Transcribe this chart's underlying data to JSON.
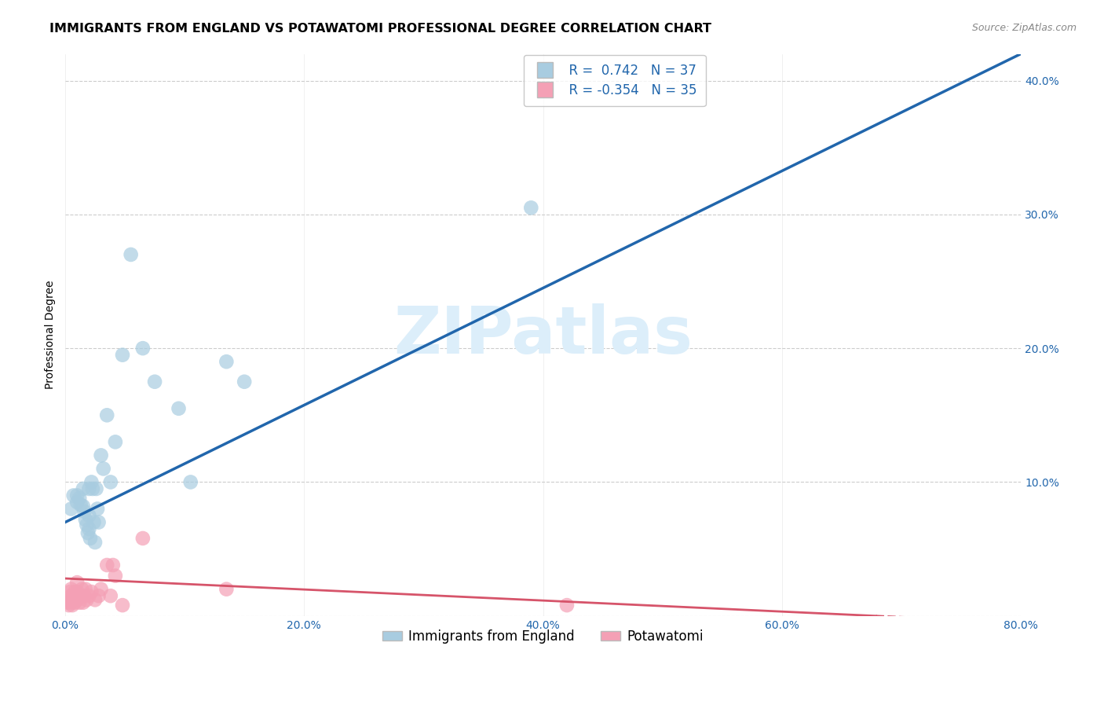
{
  "title": "IMMIGRANTS FROM ENGLAND VS POTAWATOMI PROFESSIONAL DEGREE CORRELATION CHART",
  "source": "Source: ZipAtlas.com",
  "ylabel": "Professional Degree",
  "xlim": [
    0.0,
    0.8
  ],
  "ylim": [
    0.0,
    0.42
  ],
  "xtick_vals": [
    0.0,
    0.2,
    0.4,
    0.6,
    0.8
  ],
  "xtick_labels": [
    "0.0%",
    "20.0%",
    "40.0%",
    "60.0%",
    "80.0%"
  ],
  "ytick_vals": [
    0.0,
    0.1,
    0.2,
    0.3,
    0.4
  ],
  "ytick_labels_right": [
    "",
    "10.0%",
    "20.0%",
    "30.0%",
    "40.0%"
  ],
  "blue_scatter_x": [
    0.005,
    0.007,
    0.01,
    0.01,
    0.012,
    0.013,
    0.015,
    0.015,
    0.016,
    0.017,
    0.018,
    0.019,
    0.02,
    0.02,
    0.02,
    0.021,
    0.022,
    0.023,
    0.024,
    0.025,
    0.026,
    0.027,
    0.028,
    0.03,
    0.032,
    0.035,
    0.038,
    0.042,
    0.048,
    0.055,
    0.065,
    0.075,
    0.095,
    0.105,
    0.135,
    0.15,
    0.39
  ],
  "blue_scatter_y": [
    0.08,
    0.09,
    0.085,
    0.09,
    0.088,
    0.083,
    0.095,
    0.082,
    0.078,
    0.072,
    0.068,
    0.062,
    0.095,
    0.075,
    0.065,
    0.058,
    0.1,
    0.095,
    0.07,
    0.055,
    0.095,
    0.08,
    0.07,
    0.12,
    0.11,
    0.15,
    0.1,
    0.13,
    0.195,
    0.27,
    0.2,
    0.175,
    0.155,
    0.1,
    0.19,
    0.175,
    0.305
  ],
  "pink_scatter_x": [
    0.002,
    0.003,
    0.004,
    0.004,
    0.005,
    0.005,
    0.005,
    0.006,
    0.007,
    0.008,
    0.008,
    0.009,
    0.01,
    0.01,
    0.01,
    0.012,
    0.013,
    0.014,
    0.015,
    0.016,
    0.017,
    0.018,
    0.02,
    0.022,
    0.025,
    0.028,
    0.03,
    0.035,
    0.038,
    0.04,
    0.042,
    0.048,
    0.065,
    0.135,
    0.42
  ],
  "pink_scatter_y": [
    0.01,
    0.008,
    0.012,
    0.018,
    0.01,
    0.015,
    0.02,
    0.008,
    0.012,
    0.01,
    0.018,
    0.015,
    0.012,
    0.018,
    0.025,
    0.01,
    0.015,
    0.02,
    0.01,
    0.015,
    0.02,
    0.012,
    0.015,
    0.018,
    0.012,
    0.015,
    0.02,
    0.038,
    0.015,
    0.038,
    0.03,
    0.008,
    0.058,
    0.02,
    0.008
  ],
  "blue_line_x0": 0.0,
  "blue_line_y0": 0.07,
  "blue_line_x1": 0.8,
  "blue_line_y1": 0.42,
  "pink_line_x0": 0.0,
  "pink_line_y0": 0.028,
  "pink_line_x1": 0.8,
  "pink_line_y1": -0.005,
  "blue_color": "#a8cce0",
  "blue_line_color": "#2166ac",
  "pink_color": "#f4a0b5",
  "pink_line_color": "#d6546a",
  "background_color": "#ffffff",
  "grid_color": "#cccccc",
  "watermark_text": "ZIPatlas",
  "watermark_color": "#dceefa",
  "legend_blue_label": "  R =  0.742   N = 37",
  "legend_pink_label": "  R = -0.354   N = 35",
  "legend_blue_series": "Immigrants from England",
  "legend_pink_series": "Potawatomi",
  "title_fontsize": 11.5,
  "tick_fontsize": 10,
  "legend_fontsize": 12,
  "source_fontsize": 9,
  "ylabel_fontsize": 10,
  "tick_color": "#2166ac"
}
